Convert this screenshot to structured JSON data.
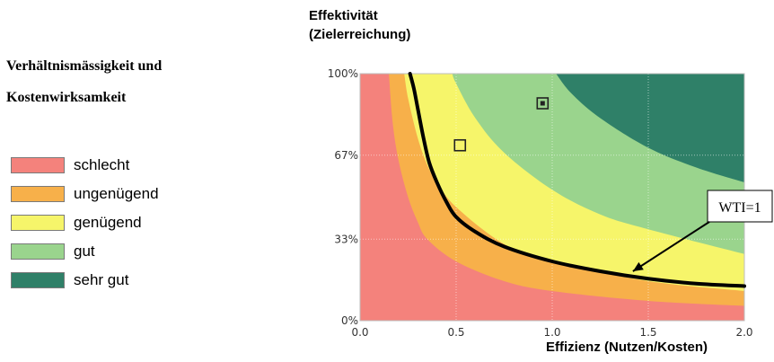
{
  "side_title": {
    "line1": "Verhältnismässigkeit und",
    "line2": "Kostenwirksamkeit"
  },
  "legend": [
    {
      "label": "schlecht",
      "color": "#f4827c"
    },
    {
      "label": "ungenügend",
      "color": "#f7b04a"
    },
    {
      "label": "genügend",
      "color": "#f6f56a"
    },
    {
      "label": "gut",
      "color": "#9ad48d"
    },
    {
      "label": "sehr gut",
      "color": "#2f8068"
    }
  ],
  "chart_data": {
    "type": "area",
    "ylabel_line1": "Effektivität",
    "ylabel_line2": "(Zielerreichung)",
    "xlabel": "Effizienz (Nutzen/Kosten)",
    "xlim": [
      0,
      2.0
    ],
    "ylim": [
      0,
      100
    ],
    "x_ticks": [
      "0.0",
      "0.5",
      "1.0",
      "1.5",
      "2.0"
    ],
    "x_tick_values": [
      0,
      0.5,
      1.0,
      1.5,
      2.0
    ],
    "y_ticks": [
      "0%",
      "33%",
      "67%",
      "100%"
    ],
    "y_tick_values": [
      0,
      33,
      67,
      100
    ],
    "grid": true,
    "zone_boundaries": [
      {
        "between": [
          "schlecht",
          "ungenügend"
        ],
        "points": [
          [
            0.15,
            100
          ],
          [
            0.17,
            80
          ],
          [
            0.2,
            65
          ],
          [
            0.25,
            50
          ],
          [
            0.3,
            40
          ],
          [
            0.35,
            33
          ],
          [
            0.5,
            24
          ],
          [
            0.75,
            16
          ],
          [
            1.0,
            12
          ],
          [
            1.5,
            8
          ],
          [
            2.0,
            6
          ]
        ]
      },
      {
        "between": [
          "ungenügend",
          "genügend"
        ],
        "points": [
          [
            0.23,
            100
          ],
          [
            0.25,
            90
          ],
          [
            0.3,
            74
          ],
          [
            0.35,
            63
          ],
          [
            0.4,
            56
          ],
          [
            0.5,
            46
          ],
          [
            0.75,
            31
          ],
          [
            1.0,
            24
          ],
          [
            1.5,
            16
          ],
          [
            2.0,
            12
          ]
        ]
      },
      {
        "between": [
          "genügend",
          "gut"
        ],
        "points": [
          [
            0.48,
            100
          ],
          [
            0.5,
            96
          ],
          [
            0.6,
            82
          ],
          [
            0.75,
            68
          ],
          [
            1.0,
            53
          ],
          [
            1.25,
            43
          ],
          [
            1.5,
            37
          ],
          [
            2.0,
            27
          ]
        ]
      },
      {
        "between": [
          "gut",
          "sehr gut"
        ],
        "points": [
          [
            1.02,
            100
          ],
          [
            1.1,
            92
          ],
          [
            1.25,
            82
          ],
          [
            1.5,
            70
          ],
          [
            1.75,
            62
          ],
          [
            2.0,
            56
          ]
        ]
      }
    ],
    "series": [
      {
        "name": "WTI=1",
        "points": [
          [
            0.26,
            100
          ],
          [
            0.28,
            94
          ],
          [
            0.3,
            86
          ],
          [
            0.33,
            74
          ],
          [
            0.36,
            64
          ],
          [
            0.4,
            56
          ],
          [
            0.45,
            48
          ],
          [
            0.5,
            42
          ],
          [
            0.6,
            36
          ],
          [
            0.75,
            30
          ],
          [
            1.0,
            24
          ],
          [
            1.25,
            20
          ],
          [
            1.5,
            17
          ],
          [
            1.75,
            15
          ],
          [
            2.0,
            14
          ]
        ]
      }
    ],
    "markers": [
      {
        "x": 0.52,
        "y": 71,
        "style": "open-square"
      },
      {
        "x": 0.95,
        "y": 88,
        "style": "dotted-square"
      }
    ],
    "annotations": [
      {
        "text": "WTI=1",
        "x": 1.42,
        "y": 20,
        "placement": "right"
      }
    ]
  }
}
